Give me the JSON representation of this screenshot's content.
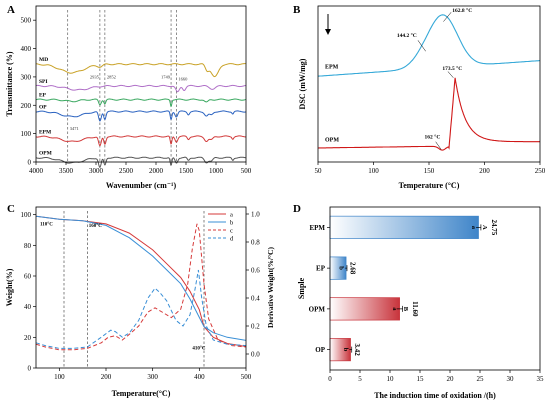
{
  "panels": {
    "A": {
      "letter": "A"
    },
    "B": {
      "letter": "B"
    },
    "C": {
      "letter": "C"
    },
    "D": {
      "letter": "D"
    }
  },
  "chart_data": [
    {
      "type": "line",
      "panel": "A",
      "xlabel": "Wavenumber (cm⁻¹)",
      "ylabel": "Transmittance (%)",
      "xlim": [
        4000,
        500
      ],
      "ylim": [
        0,
        550
      ],
      "xticks": [
        4000,
        3500,
        3000,
        2500,
        2000,
        1500,
        1000,
        500
      ],
      "yticks": [
        0,
        100,
        200,
        300,
        400,
        500
      ],
      "series": [
        {
          "name": "MD",
          "color": "#c9a227",
          "offset": 345
        },
        {
          "name": "SPI",
          "color": "#b070c8",
          "offset": 268
        },
        {
          "name": "EP",
          "color": "#3aa860",
          "offset": 220
        },
        {
          "name": "OP",
          "color": "#2a62c0",
          "offset": 178
        },
        {
          "name": "EPM",
          "color": "#d23a3a",
          "offset": 90
        },
        {
          "name": "OPM",
          "color": "#555555",
          "offset": 15
        }
      ],
      "annotations": [
        {
          "text": "3471",
          "x": 3471
        },
        {
          "text": "2935",
          "x": 2935
        },
        {
          "text": "2852",
          "x": 2852
        },
        {
          "text": "1749",
          "x": 1749
        },
        {
          "text": "1660",
          "x": 1660
        }
      ]
    },
    {
      "type": "line",
      "panel": "B",
      "xlabel": "Temperature (°C)",
      "ylabel": "DSC (mW/mg)",
      "xlim": [
        50,
        250
      ],
      "xticks": [
        50,
        100,
        150,
        200,
        250
      ],
      "series": [
        {
          "name": "EPM",
          "color": "#36a9d8"
        },
        {
          "name": "OPM",
          "color": "#d01818"
        }
      ],
      "annotations": [
        {
          "text": "162.8 °C",
          "x": 162.8,
          "series": "EPM"
        },
        {
          "text": "144.2 °C",
          "x": 144.2,
          "series": "EPM"
        },
        {
          "text": "173.5 °C",
          "x": 173.5,
          "series": "OPM"
        },
        {
          "text": "162 °C",
          "x": 162,
          "series": "OPM"
        }
      ]
    },
    {
      "type": "line",
      "panel": "C",
      "xlabel": "Temperature(°C)",
      "ylabel": "Weight(%)",
      "y2label": "Derivative Weight(%/°C)",
      "xlim": [
        50,
        500
      ],
      "ylim": [
        0,
        105
      ],
      "y2lim": [
        -0.1,
        1.05
      ],
      "xticks": [
        100,
        200,
        300,
        400,
        500
      ],
      "yticks": [
        0,
        20,
        40,
        60,
        80,
        100
      ],
      "y2ticks": [
        0.0,
        0.2,
        0.4,
        0.6,
        0.8,
        1.0
      ],
      "legend": [
        "a",
        "b",
        "c",
        "d"
      ],
      "legend_position": "top-right",
      "series": [
        {
          "name": "a",
          "color": "#d63a3a",
          "style": "solid",
          "axis": "left",
          "x": [
            50,
            100,
            150,
            200,
            250,
            300,
            330,
            360,
            380,
            400,
            410,
            430,
            460,
            500
          ],
          "y": [
            99,
            97,
            96,
            94,
            88,
            77,
            68,
            59,
            50,
            38,
            27,
            20,
            16,
            14
          ]
        },
        {
          "name": "b",
          "color": "#3a8fd6",
          "style": "solid",
          "axis": "left",
          "x": [
            50,
            100,
            150,
            200,
            250,
            300,
            330,
            360,
            380,
            400,
            410,
            430,
            460,
            500
          ],
          "y": [
            99,
            97,
            96,
            93,
            85,
            73,
            64,
            55,
            45,
            33,
            27,
            23,
            20,
            18
          ]
        },
        {
          "name": "c",
          "color": "#d63a3a",
          "style": "dashed",
          "axis": "right",
          "x": [
            50,
            70,
            100,
            130,
            160,
            190,
            205,
            220,
            235,
            250,
            270,
            290,
            305,
            320,
            340,
            360,
            375,
            385,
            395,
            400,
            410,
            420,
            440,
            470,
            500
          ],
          "y": [
            0.07,
            0.05,
            0.03,
            0.03,
            0.04,
            0.08,
            0.12,
            0.13,
            0.1,
            0.14,
            0.2,
            0.3,
            0.33,
            0.3,
            0.26,
            0.32,
            0.5,
            0.75,
            0.93,
            0.88,
            0.5,
            0.25,
            0.1,
            0.06,
            0.05
          ]
        },
        {
          "name": "d",
          "color": "#3a8fd6",
          "style": "dashed",
          "axis": "right",
          "x": [
            50,
            70,
            100,
            130,
            160,
            190,
            210,
            220,
            235,
            250,
            270,
            290,
            305,
            315,
            330,
            350,
            365,
            380,
            390,
            398,
            405,
            415,
            430,
            460,
            500
          ],
          "y": [
            0.08,
            0.06,
            0.04,
            0.04,
            0.05,
            0.12,
            0.17,
            0.16,
            0.12,
            0.15,
            0.24,
            0.4,
            0.47,
            0.44,
            0.38,
            0.24,
            0.2,
            0.28,
            0.45,
            0.6,
            0.4,
            0.2,
            0.1,
            0.07,
            0.06
          ]
        }
      ],
      "annotations": [
        {
          "text": "110°C",
          "x": 110
        },
        {
          "text": "160°C",
          "x": 160
        },
        {
          "text": "410°C",
          "x": 410
        }
      ]
    },
    {
      "type": "bar",
      "orientation": "horizontal",
      "panel": "D",
      "xlabel": "The induction time of oxidation /(h)",
      "ylabel": "Smple",
      "xlim": [
        0,
        35
      ],
      "xticks": [
        0,
        5,
        10,
        15,
        20,
        25,
        30,
        35
      ],
      "categories": [
        "EPM",
        "EP",
        "OPM",
        "OP"
      ],
      "values": [
        24.75,
        2.68,
        11.6,
        3.42
      ],
      "value_labels": [
        "24.75",
        "2.68",
        "11.60",
        "3.42"
      ],
      "letters_lower": [
        "a",
        "b",
        "a",
        "b"
      ],
      "letters_upper": [
        "A",
        "",
        "B",
        ""
      ],
      "errors": [
        0.4,
        0.15,
        0.5,
        0.2
      ],
      "colors": [
        "#3f85c9",
        "#3f85c9",
        "#c8343c",
        "#c8343c"
      ]
    }
  ]
}
